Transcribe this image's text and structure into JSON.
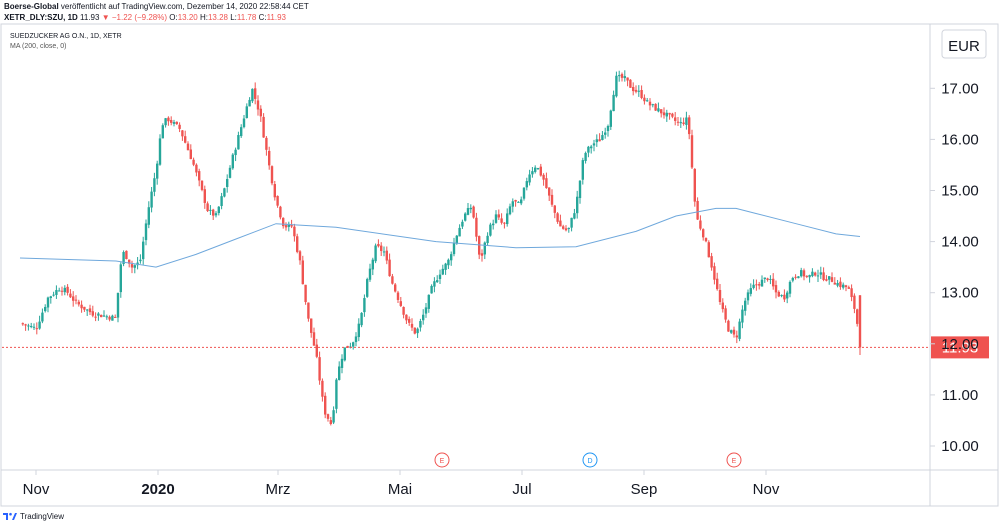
{
  "header": {
    "publisher": "Boerse-Global",
    "published_text": "veröffentlicht auf TradingView.com, Dezember 14, 2020 22:58:44 CET",
    "symbol": "XETR_DLY:SZU, 1D",
    "last": "11.93",
    "change_arrow": "▼",
    "change": "−1.22 (−9.28%)",
    "open_label": "O:",
    "open": "13.20",
    "high_label": "H:",
    "high": "13.28",
    "low_label": "L:",
    "low": "11.78",
    "close_label": "C:",
    "close": "11.93"
  },
  "legend": {
    "instrument": "SUEDZUCKER AG O.N., 1D, XETR",
    "indicator": "MA (200, close, 0)"
  },
  "footer": {
    "brand": "TradingView"
  },
  "colors": {
    "up": "#26a69a",
    "down": "#ef5350",
    "ma": "#6fa8dc",
    "last_price": "#ef5350"
  },
  "chart_data": {
    "type": "candlestick",
    "currency": "EUR",
    "ylim": [
      9.5,
      18.0
    ],
    "y_ticks": [
      "10.00",
      "11.00",
      "12.00",
      "13.00",
      "14.00",
      "15.00",
      "16.00",
      "17.00"
    ],
    "x_ticks": [
      "Nov",
      "2020",
      "Mrz",
      "Mai",
      "Jul",
      "Sep",
      "Nov"
    ],
    "x_tick_days": [
      0,
      61,
      121,
      182,
      243,
      304,
      365
    ],
    "last_price_label": "11.93",
    "last_price": 11.93,
    "events": [
      {
        "label": "E",
        "day": 203,
        "kind": "earnings"
      },
      {
        "label": "D",
        "day": 277,
        "kind": "dividend"
      },
      {
        "label": "E",
        "day": 349,
        "kind": "earnings"
      }
    ],
    "price_path_days": [
      -8,
      0,
      6,
      12,
      16,
      20,
      24,
      28,
      34,
      40,
      42,
      44,
      48,
      52,
      56,
      60,
      63,
      66,
      72,
      78,
      82,
      86,
      90,
      94,
      98,
      103,
      108,
      112,
      116,
      120,
      124,
      128,
      132,
      136,
      140,
      144,
      148,
      150,
      154,
      158,
      162,
      166,
      170,
      174,
      178,
      182,
      186,
      190,
      194,
      198,
      202,
      206,
      210,
      214,
      218,
      222,
      226,
      230,
      234,
      238,
      242,
      246,
      250,
      254,
      258,
      262,
      266,
      270,
      274,
      278,
      282,
      286,
      290,
      294,
      298,
      302,
      306,
      310,
      314,
      318,
      322,
      326,
      330,
      334,
      338,
      342,
      346,
      350,
      354,
      358,
      362,
      366,
      370,
      374,
      378,
      382,
      386,
      390,
      394,
      398,
      402,
      406,
      410,
      412
    ],
    "price_path": [
      12.4,
      12.3,
      12.9,
      13.1,
      13.0,
      12.8,
      12.7,
      12.6,
      12.55,
      12.5,
      13.5,
      13.8,
      13.5,
      13.6,
      14.6,
      15.4,
      16.3,
      16.4,
      16.2,
      15.6,
      15.1,
      14.6,
      14.5,
      15.0,
      15.6,
      16.3,
      17.0,
      16.5,
      15.6,
      14.8,
      14.3,
      14.3,
      13.6,
      12.5,
      11.8,
      10.7,
      10.4,
      11.3,
      11.9,
      12.0,
      12.4,
      13.3,
      13.9,
      13.8,
      13.2,
      12.8,
      12.4,
      12.2,
      12.6,
      13.1,
      13.4,
      13.6,
      14.1,
      14.5,
      14.7,
      13.6,
      14.2,
      14.5,
      14.3,
      14.8,
      14.7,
      15.3,
      15.5,
      15.2,
      14.7,
      14.3,
      14.2,
      14.7,
      15.7,
      15.9,
      16.0,
      16.3,
      17.2,
      17.2,
      17.0,
      16.9,
      16.7,
      16.6,
      16.5,
      16.4,
      16.3,
      16.4,
      14.5,
      14.1,
      13.5,
      12.8,
      12.3,
      12.1,
      12.8,
      13.1,
      13.2,
      13.3,
      13.0,
      12.9,
      13.3,
      13.4,
      13.3,
      13.4,
      13.3,
      13.25,
      13.15,
      13.1,
      12.6,
      11.93
    ],
    "ma_days": [
      -8,
      40,
      60,
      80,
      100,
      120,
      150,
      200,
      240,
      270,
      300,
      320,
      340,
      350,
      360,
      380,
      400,
      412
    ],
    "ma_values": [
      13.68,
      13.62,
      13.5,
      13.75,
      14.05,
      14.35,
      14.28,
      14.0,
      13.88,
      13.9,
      14.2,
      14.5,
      14.65,
      14.65,
      14.55,
      14.35,
      14.15,
      14.1
    ]
  }
}
